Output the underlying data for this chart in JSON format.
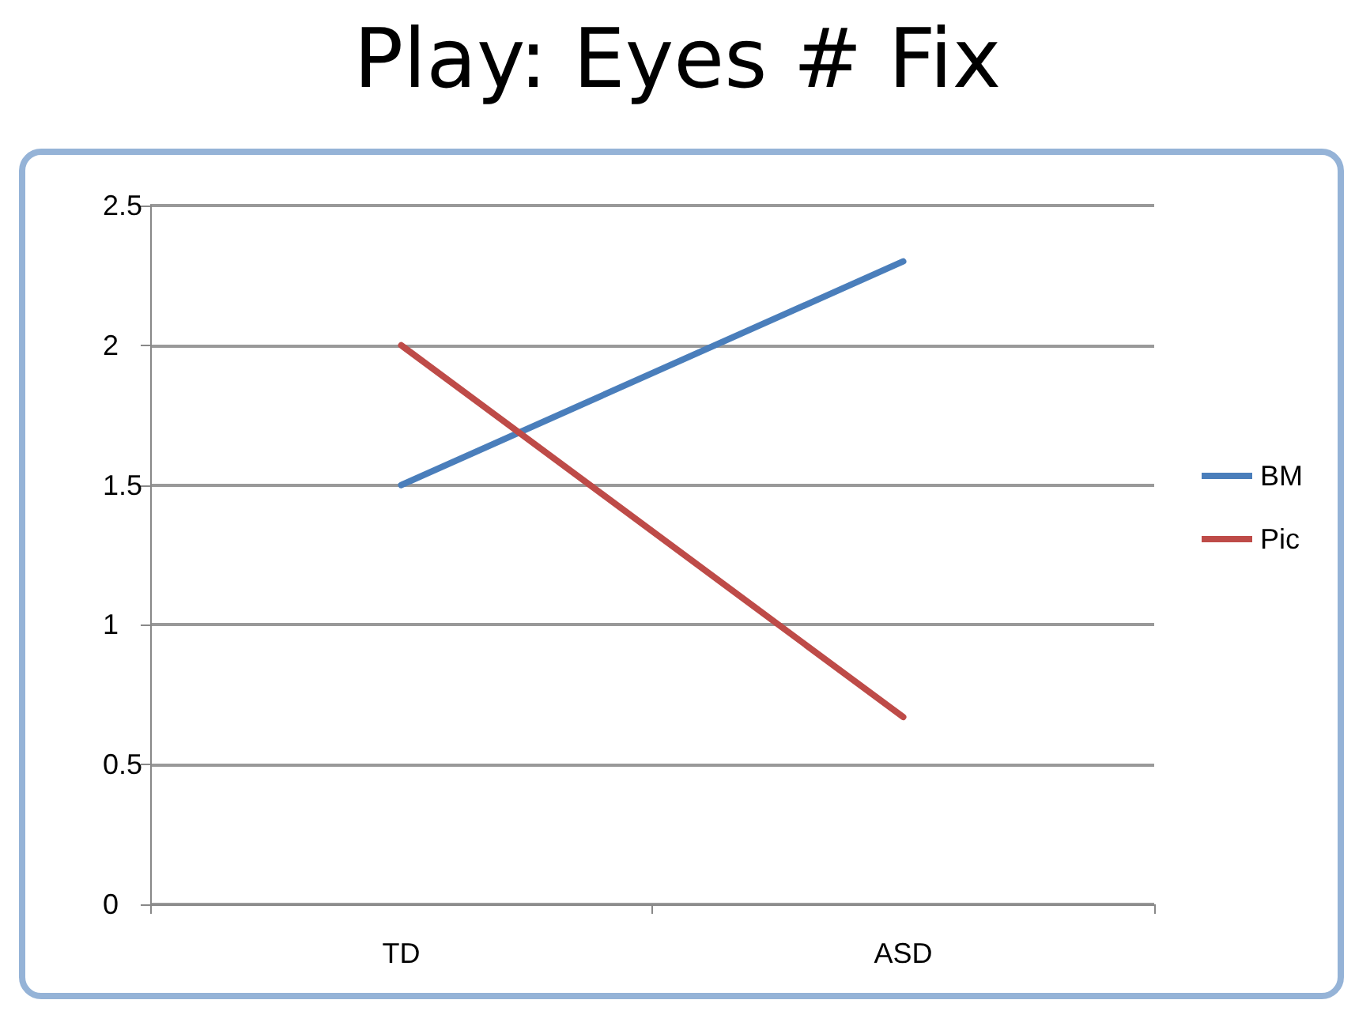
{
  "chart_data": {
    "type": "line",
    "title": "Play: Eyes # Fix",
    "categories": [
      "TD",
      "ASD"
    ],
    "series": [
      {
        "name": "BM",
        "color": "#4a7ebb",
        "values": [
          1.5,
          2.3
        ]
      },
      {
        "name": "Pic",
        "color": "#be4b48",
        "values": [
          2.0,
          0.67
        ]
      }
    ],
    "ylim": [
      0,
      2.5
    ],
    "yticks": [
      0,
      0.5,
      1,
      1.5,
      2,
      2.5
    ],
    "grid": "y",
    "legend": "right",
    "marker": "none",
    "line_style": "solid"
  }
}
